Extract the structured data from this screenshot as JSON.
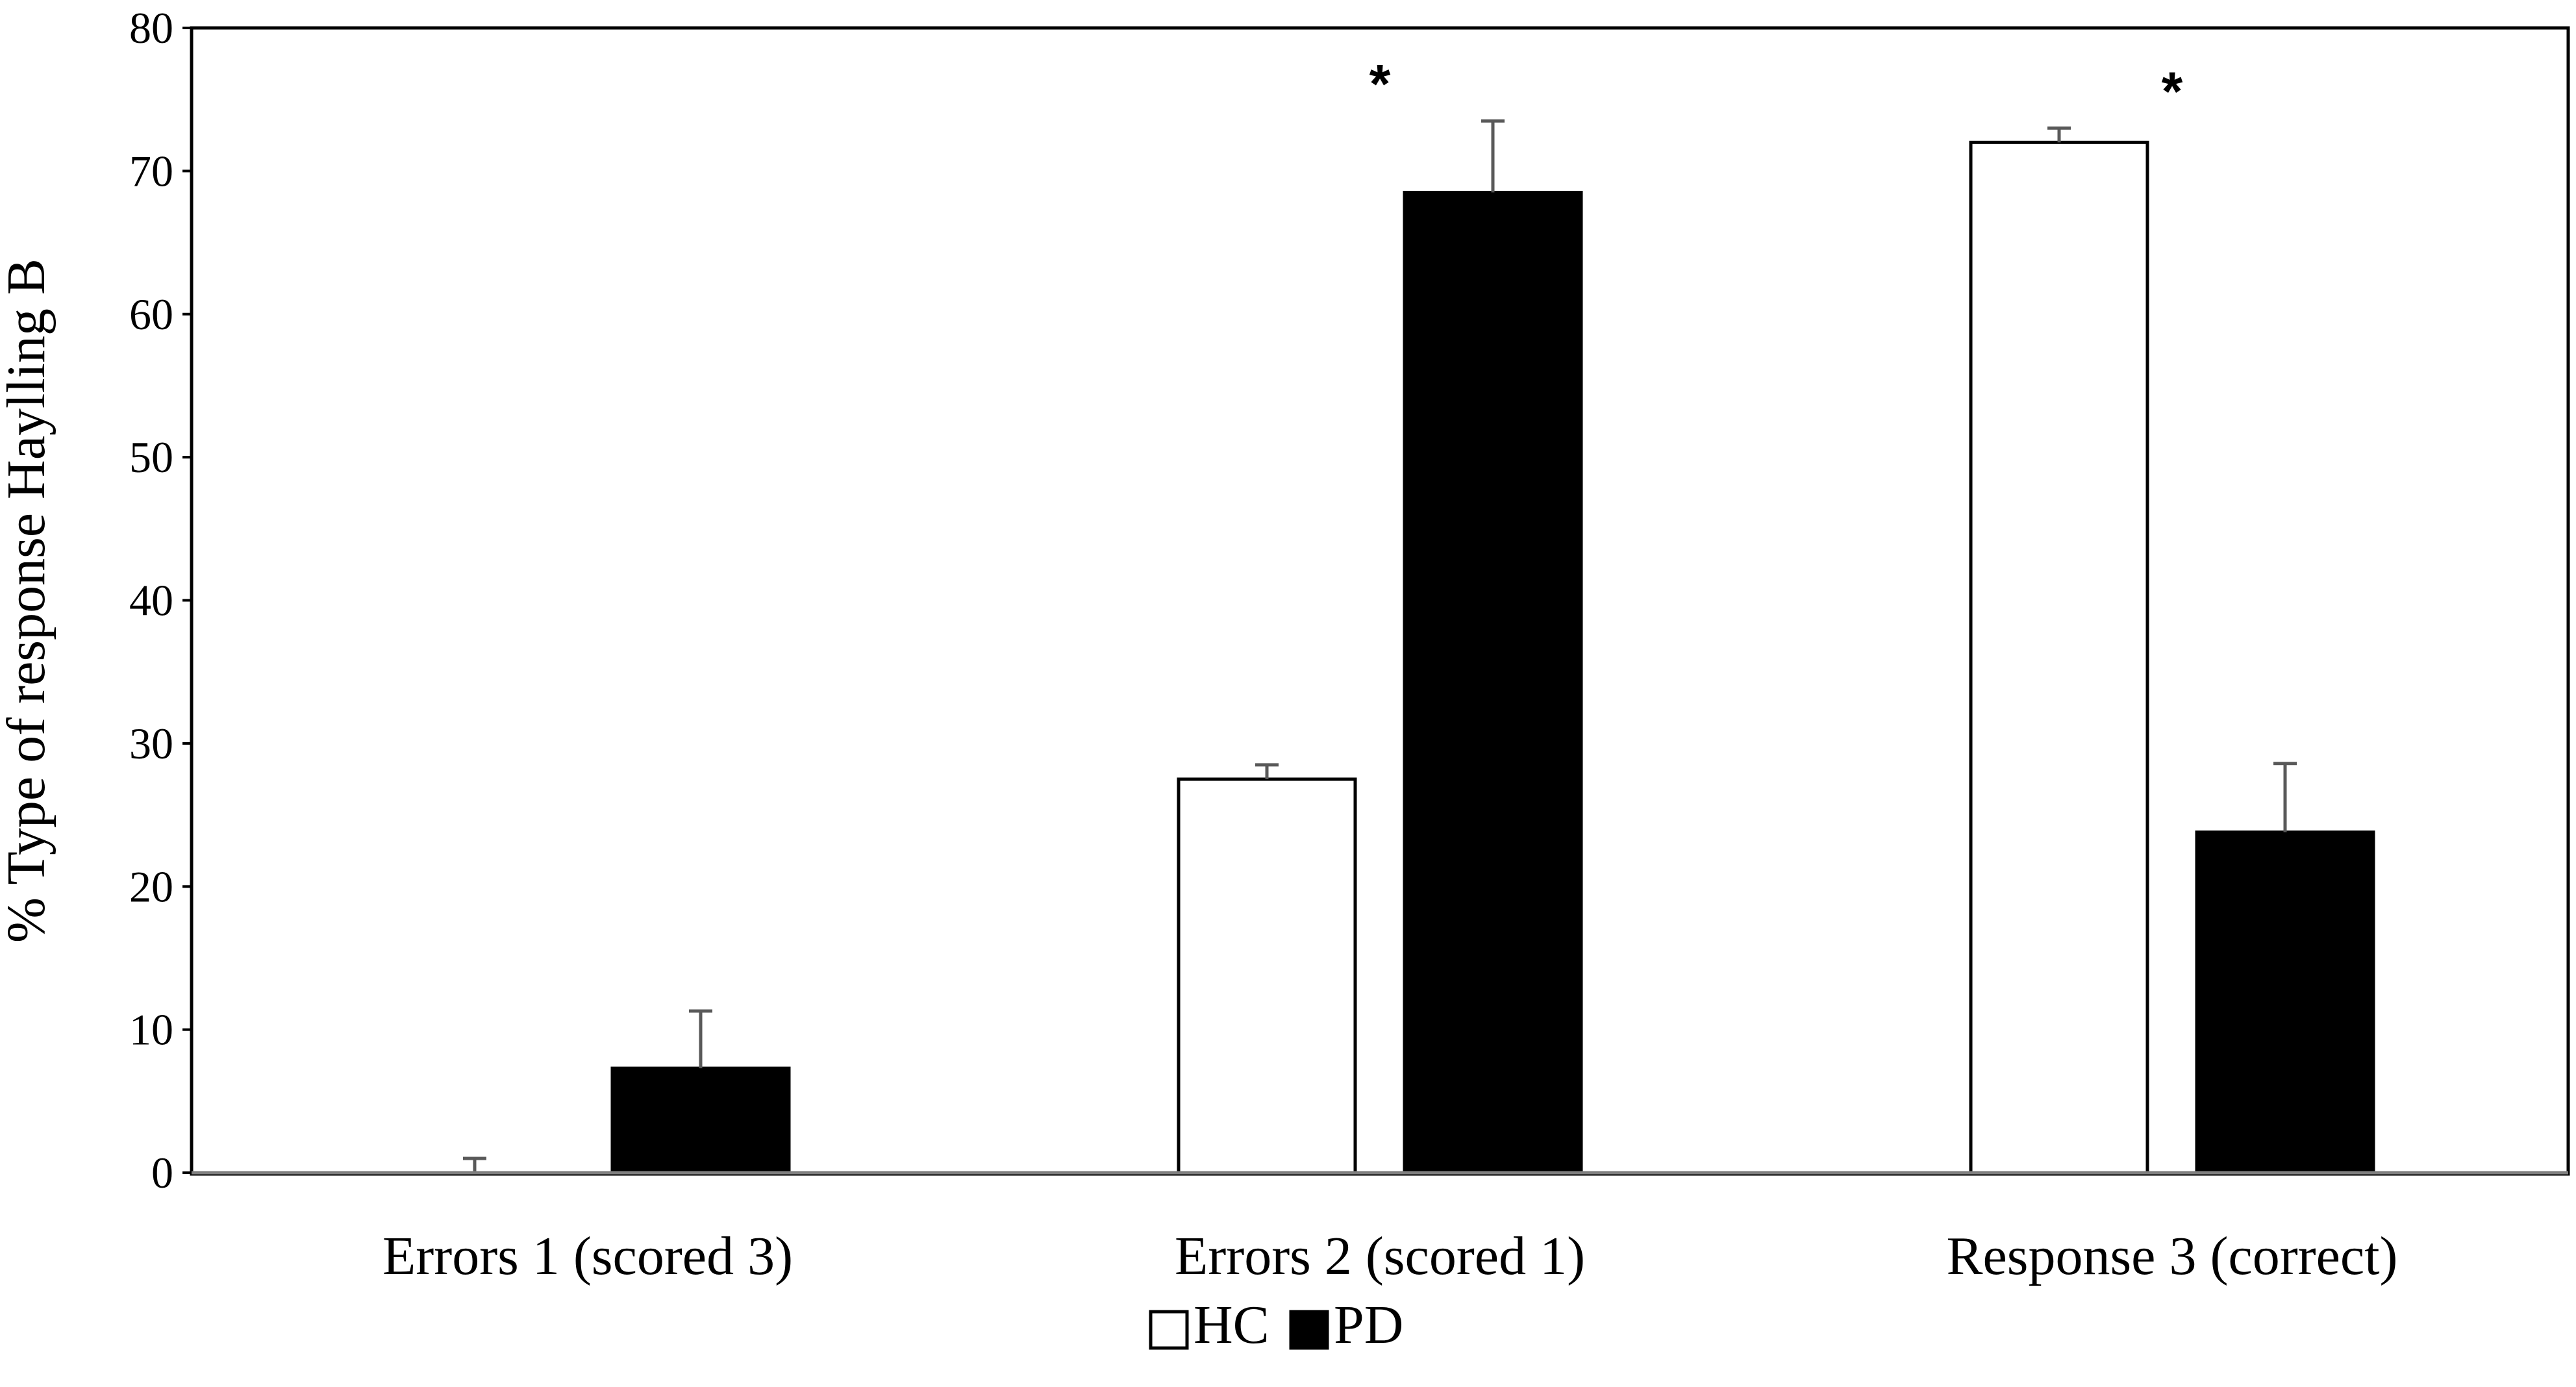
{
  "chart_data": {
    "type": "bar",
    "ylabel": "% Type of response Haylling B",
    "xlabel": "",
    "ylim": [
      0,
      80
    ],
    "yticks": [
      0,
      10,
      20,
      30,
      40,
      50,
      60,
      70,
      80
    ],
    "categories": [
      "Errors 1 (scored 3)",
      "Errors 2 (scored 1)",
      "Response 3 (correct)"
    ],
    "series": [
      {
        "name": "HC",
        "fill": "#ffffff",
        "values": [
          0,
          27.5,
          72
        ],
        "errors": [
          1,
          1,
          1
        ]
      },
      {
        "name": "PD",
        "fill": "#000000",
        "values": [
          7.3,
          68.5,
          23.8
        ],
        "errors": [
          4,
          5,
          4.8
        ]
      }
    ],
    "annotations": [
      {
        "category_index": 1,
        "text": "*"
      },
      {
        "category_index": 2,
        "text": "*"
      }
    ],
    "grid": false,
    "legend_position": "bottom-center"
  }
}
